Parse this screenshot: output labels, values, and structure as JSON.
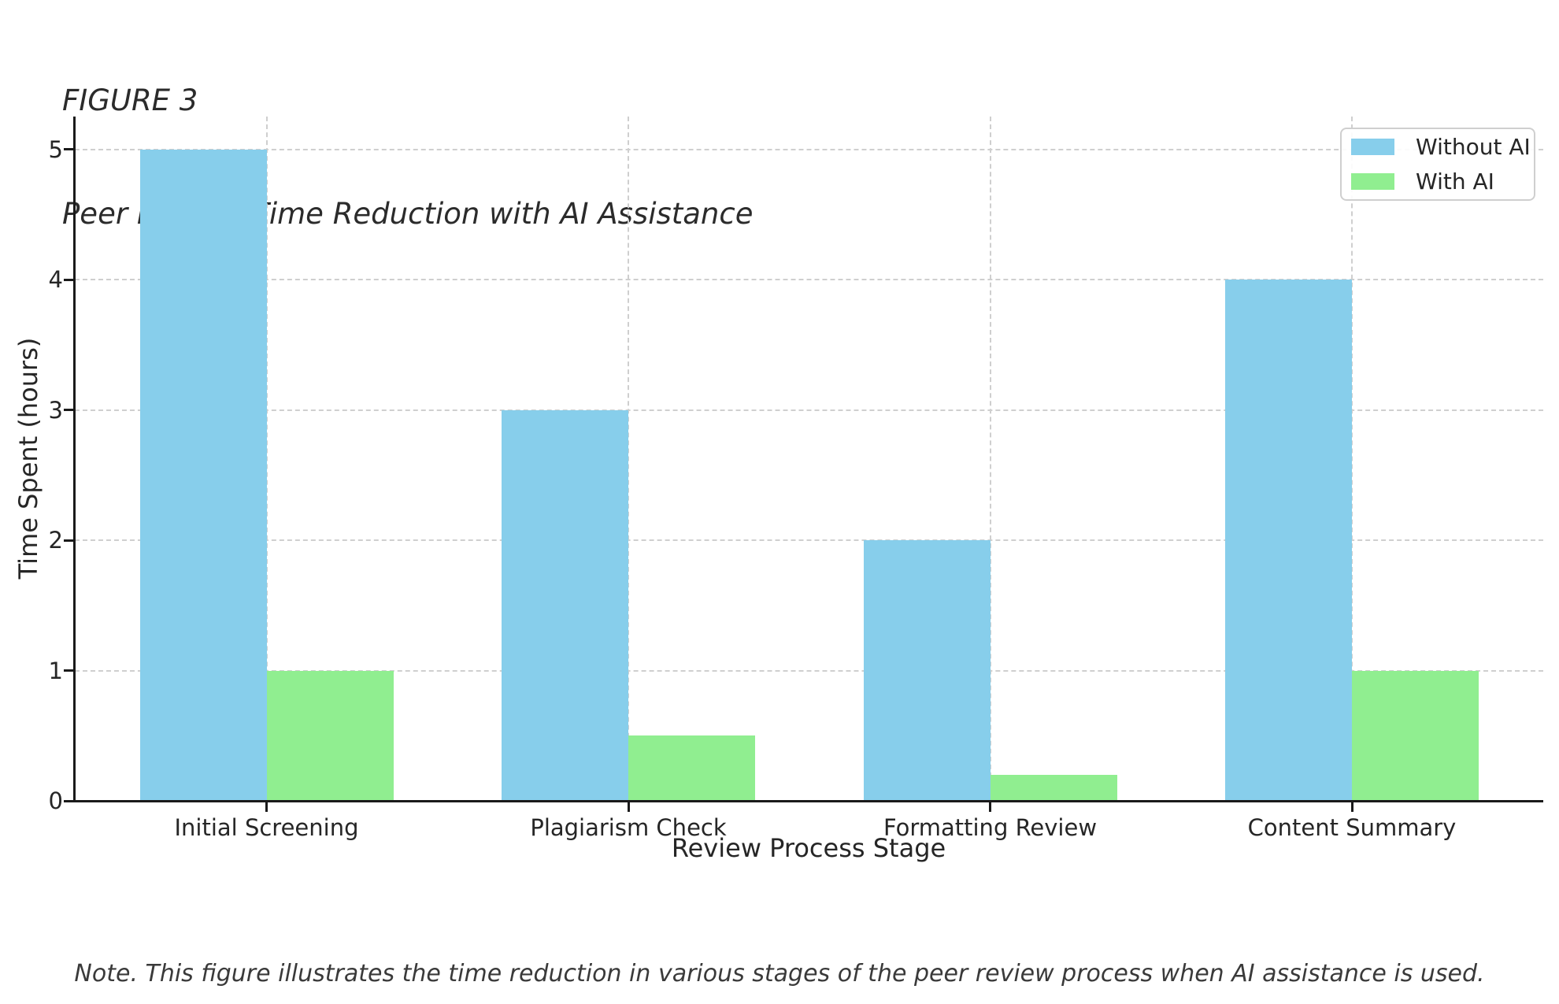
{
  "figure": {
    "label": "FIGURE 3",
    "title": "Peer Review Time Reduction with AI Assistance"
  },
  "chart_data": {
    "type": "bar",
    "categories": [
      "Initial Screening",
      "Plagiarism Check",
      "Formatting Review",
      "Content Summary"
    ],
    "series": [
      {
        "name": "Without AI",
        "color": "#87CEEB",
        "values": [
          5,
          3,
          2,
          4
        ]
      },
      {
        "name": "With AI",
        "color": "#90EE90",
        "values": [
          1,
          0.5,
          0.2,
          1
        ]
      }
    ],
    "xlabel": "Review Process Stage",
    "ylabel": "Time Spent (hours)",
    "yticks": [
      0,
      1,
      2,
      3,
      4,
      5
    ],
    "ylim": [
      0,
      5.25
    ],
    "grid": true,
    "grid_style": "dashed",
    "legend_position": "upper right",
    "bar_group_width": 0.7
  },
  "note": "Note. This figure illustrates the time reduction in various stages of the peer review process when AI assistance is used."
}
